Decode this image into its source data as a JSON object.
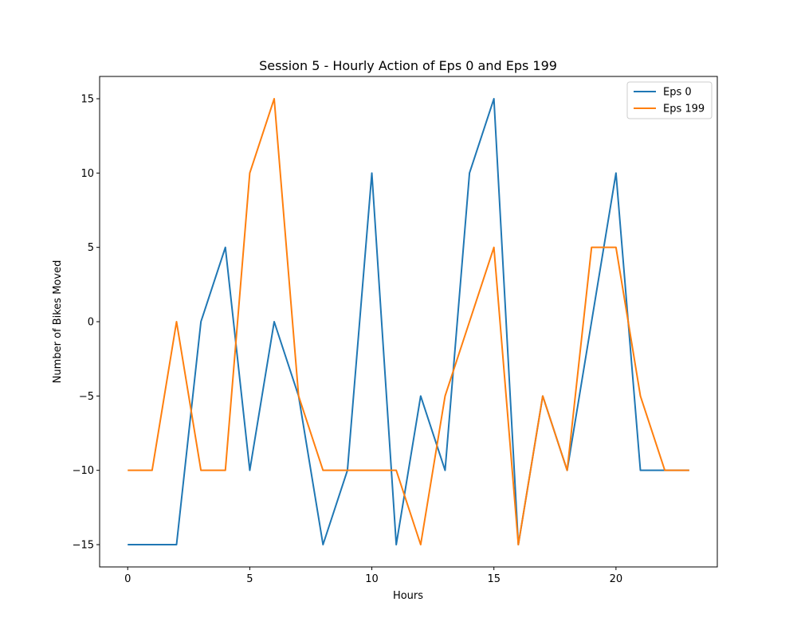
{
  "chart_data": {
    "type": "line",
    "title": "Session 5 - Hourly Action of Eps 0 and Eps 199",
    "xlabel": "Hours",
    "ylabel": "Number of Bikes Moved",
    "xlim": [
      -1.15,
      24.15
    ],
    "ylim": [
      -16.5,
      16.5
    ],
    "xticks": [
      0,
      5,
      10,
      15,
      20
    ],
    "yticks": [
      -15,
      -10,
      -5,
      0,
      5,
      10,
      15
    ],
    "grid": false,
    "legend_position": "top-right",
    "x": [
      0,
      1,
      2,
      3,
      4,
      5,
      6,
      7,
      8,
      9,
      10,
      11,
      12,
      13,
      14,
      15,
      16,
      17,
      18,
      19,
      20,
      21,
      22,
      23
    ],
    "series": [
      {
        "name": "Eps 0",
        "color": "#1f77b4",
        "values": [
          -15,
          -15,
          -15,
          0,
          5,
          -10,
          0,
          -5,
          -15,
          -10,
          10,
          -15,
          -5,
          -10,
          10,
          15,
          -15,
          -5,
          -10,
          0,
          10,
          -10,
          -10,
          -10
        ]
      },
      {
        "name": "Eps 199",
        "color": "#ff7f0e",
        "values": [
          -10,
          -10,
          0,
          -10,
          -10,
          10,
          15,
          -5,
          -10,
          -10,
          -10,
          -10,
          -15,
          -5,
          0,
          5,
          -15,
          -5,
          -10,
          5,
          5,
          -5,
          -10,
          -10
        ]
      }
    ]
  }
}
